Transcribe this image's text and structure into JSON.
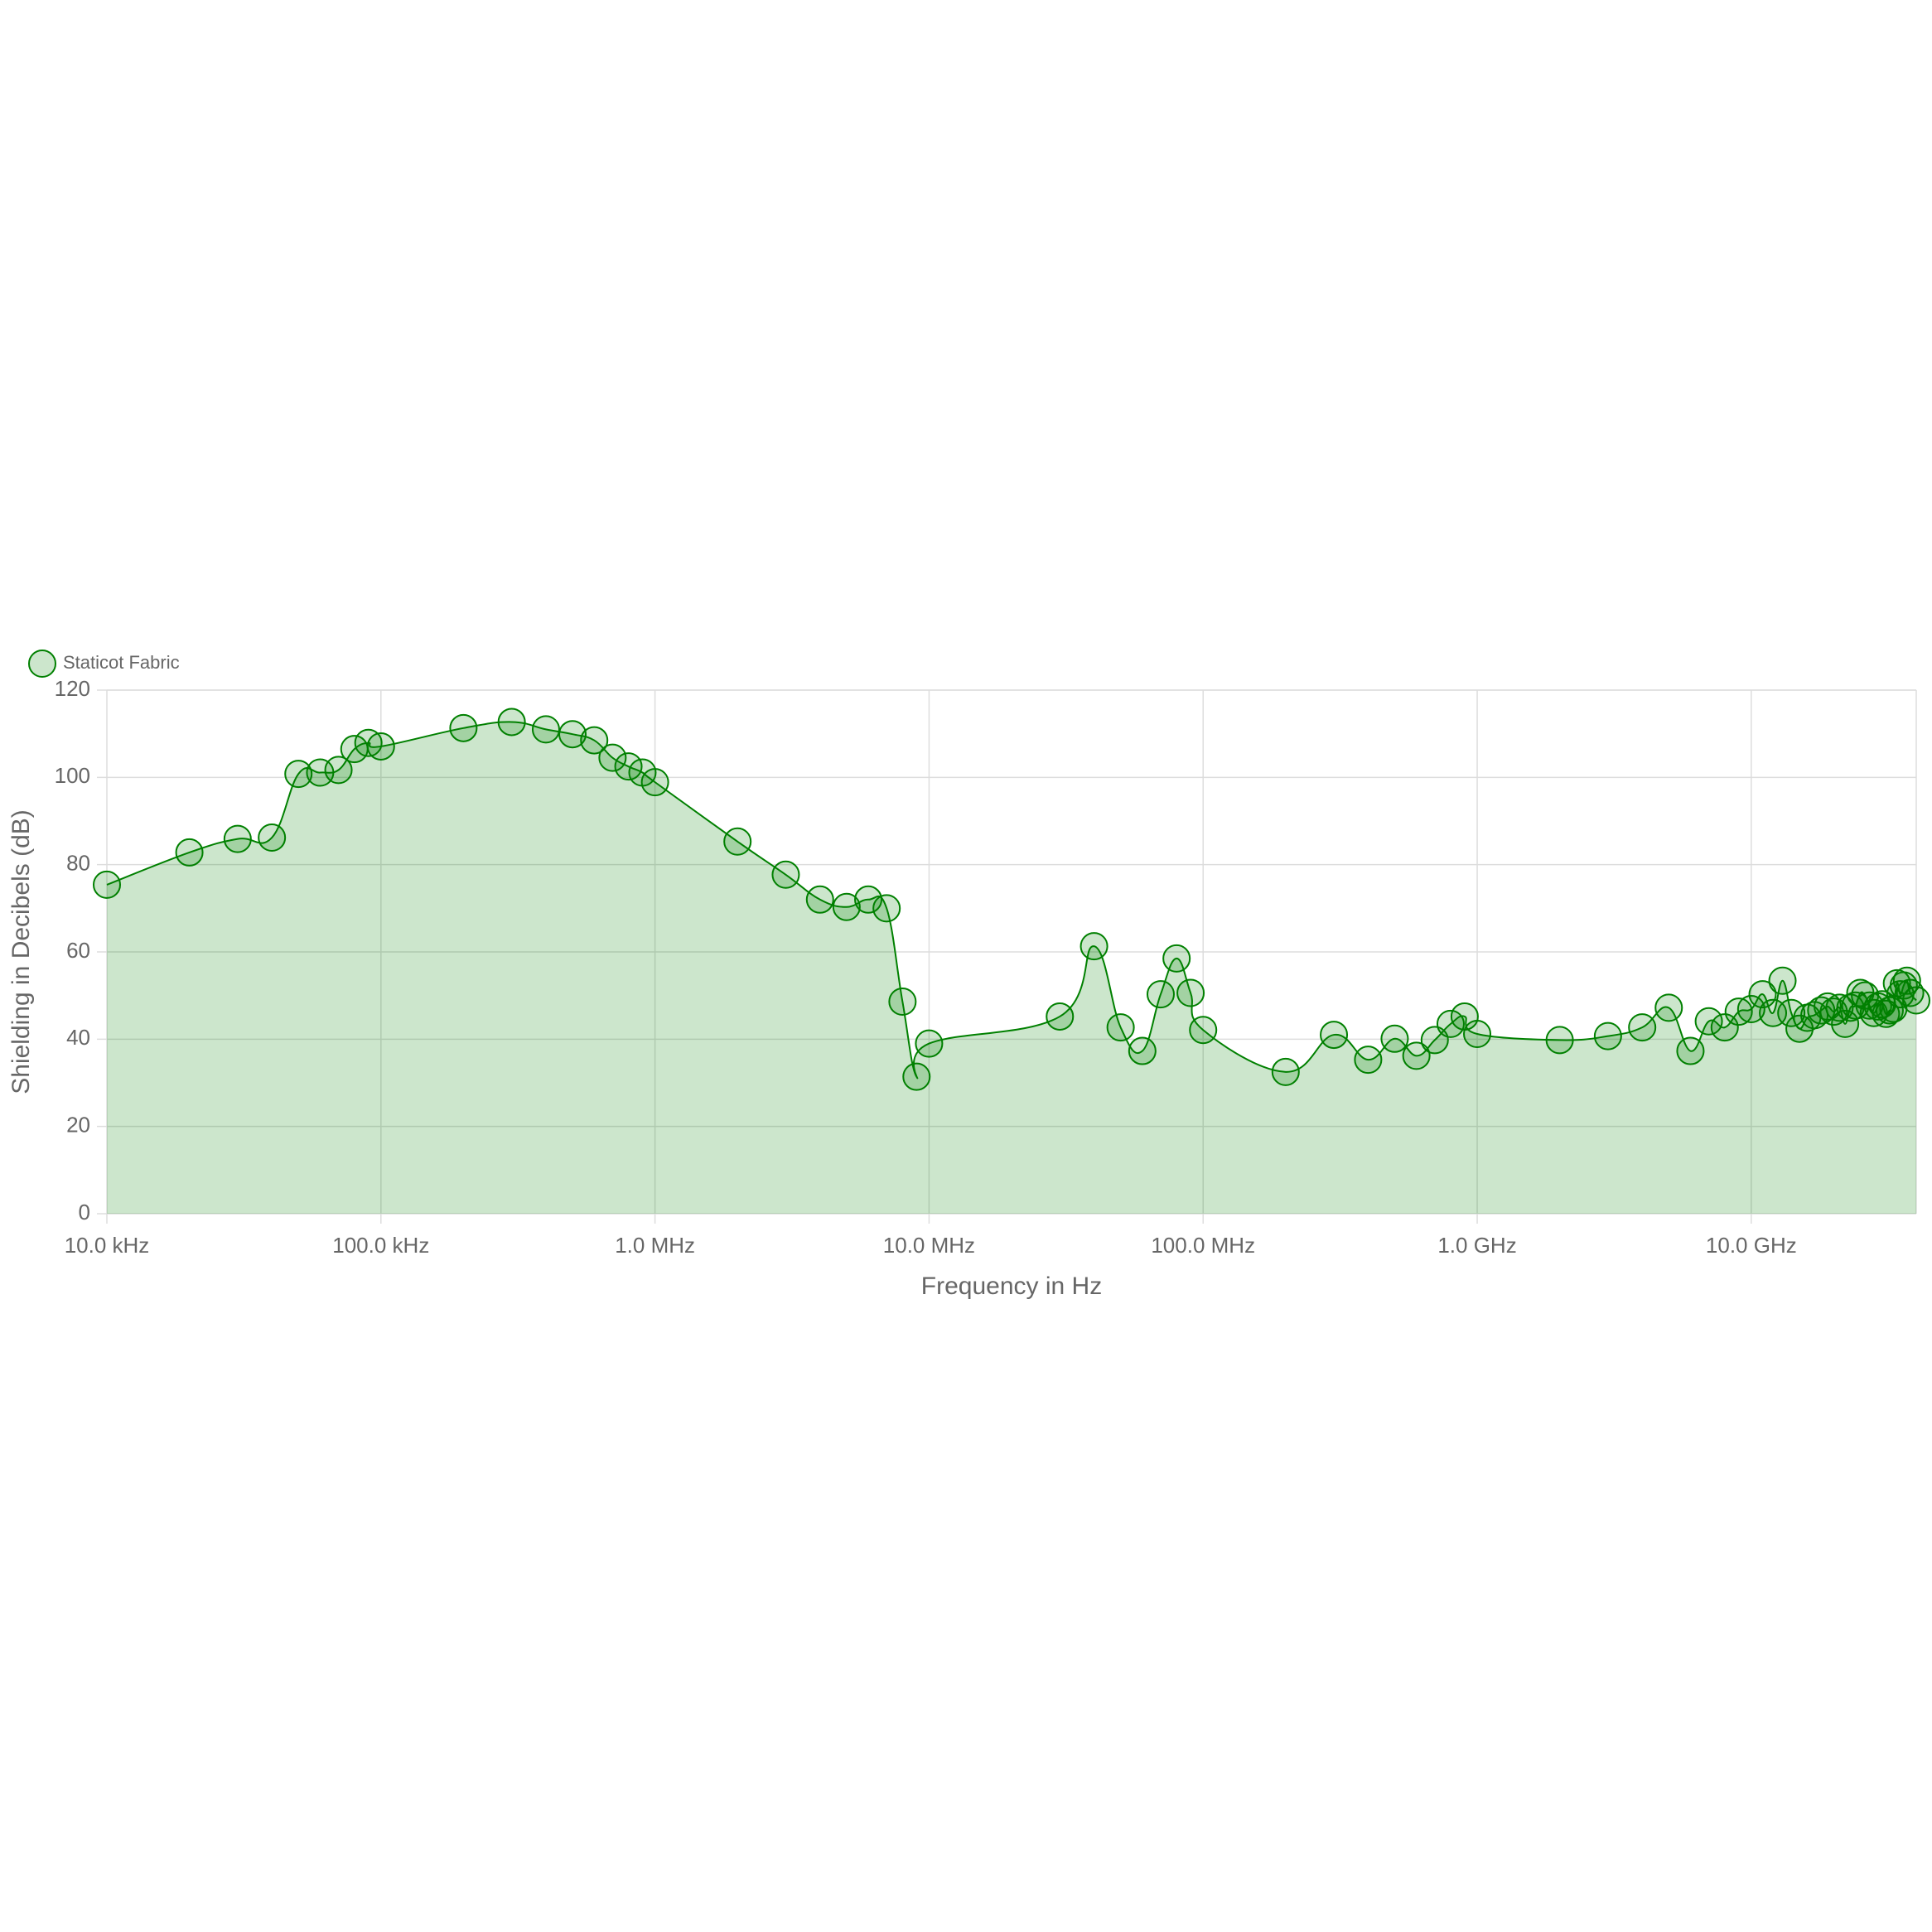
{
  "chart_data": {
    "type": "area",
    "xlabel": "Frequency in Hz",
    "ylabel": "Shielding in Decibels (dB)",
    "xscale": "log",
    "grid": true,
    "legend": "top-left",
    "x": [
      10000,
      20000,
      30000,
      40000,
      50000,
      60000,
      70000,
      80000,
      90000,
      100000,
      200000,
      300000,
      400000,
      500000,
      600000,
      700000,
      800000,
      900000,
      1000000,
      2000000,
      3000000,
      4000000,
      5000000,
      6000000,
      7000000,
      8000000,
      9000000,
      10000000,
      30000000,
      40000000,
      50000000,
      60000000,
      70000000,
      80000000,
      90000000,
      100000000,
      200000000,
      300000000,
      400000000,
      500000000,
      600000000,
      700000000,
      800000000,
      900000000,
      1000000000,
      2000000000,
      3000000000,
      4000000000,
      5000000000,
      6000000000,
      7000000000,
      8000000000,
      9000000000,
      10000000000,
      11000000000,
      12000000000,
      13000000000,
      14000000000,
      15000000000,
      16000000000,
      17000000000,
      18000000000,
      19000000000,
      20000000000,
      21000000000,
      22000000000,
      23000000000,
      24000000000,
      25000000000,
      26000000000,
      27000000000,
      28000000000,
      29000000000,
      30000000000,
      31000000000,
      32000000000,
      33000000000,
      34000000000,
      35000000000,
      36000000000,
      37000000000,
      38000000000,
      40000000000
    ],
    "series": [
      {
        "name": "Staticot Fabric",
        "color": "#008000",
        "fill": "rgba(0,128,0,0.2)",
        "values": [
          75.4,
          82.8,
          85.9,
          86.2,
          100.8,
          101.1,
          101.7,
          106.5,
          107.9,
          107.1,
          111.3,
          112.7,
          111,
          109.9,
          108.5,
          104.5,
          102.5,
          101.1,
          98.9,
          85.3,
          77.7,
          72,
          70.3,
          72,
          70,
          48.6,
          31.4,
          39,
          45.2,
          61.3,
          42.7,
          37.3,
          50.3,
          58.5,
          50.6,
          42.1,
          32.5,
          41,
          35.3,
          40.1,
          36.2,
          39.8,
          43.5,
          45.2,
          41.2,
          39.8,
          40.7,
          42.7,
          47.2,
          37.3,
          44.1,
          42.7,
          46.3,
          46.9,
          50.3,
          46,
          53.4,
          46,
          42.4,
          44.9,
          45.5,
          46.6,
          47.5,
          46.3,
          47.2,
          43.5,
          47.2,
          47.7,
          50.6,
          50,
          47.7,
          46,
          47.5,
          48,
          45.8,
          46.6,
          47,
          52.8,
          50.3,
          52.3,
          53.4,
          50.6,
          48.9
        ]
      }
    ],
    "xlim": [
      10000,
      40000000000
    ],
    "xticks": [
      {
        "value": 10000,
        "label": "10.0 kHz"
      },
      {
        "value": 100000,
        "label": "100.0 kHz"
      },
      {
        "value": 1000000,
        "label": "1.0 MHz"
      },
      {
        "value": 10000000,
        "label": "10.0 MHz"
      },
      {
        "value": 100000000,
        "label": "100.0 MHz"
      },
      {
        "value": 1000000000,
        "label": "1.0 GHz"
      },
      {
        "value": 10000000000,
        "label": "10.0 GHz"
      }
    ],
    "ylim": [
      0,
      120
    ],
    "yticks": [
      0,
      20,
      40,
      60,
      80,
      100,
      120
    ]
  }
}
